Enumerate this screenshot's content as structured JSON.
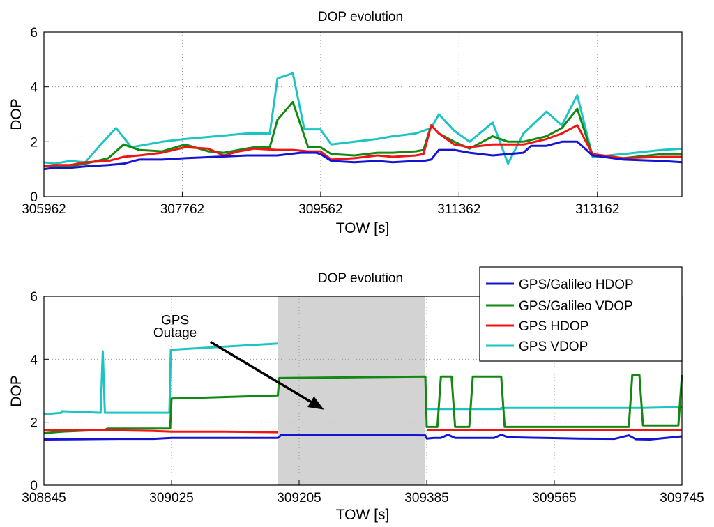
{
  "chart_data": [
    {
      "type": "line",
      "title": "DOP evolution",
      "xlabel": "TOW [s]",
      "ylabel": "DOP",
      "xlim": [
        305962,
        314262
      ],
      "ylim": [
        0,
        6
      ],
      "xticks": [
        305962,
        307762,
        309562,
        311362,
        313162
      ],
      "yticks": [
        0,
        2,
        4,
        6
      ],
      "grid": true,
      "series": [
        {
          "name": "GPS/Galileo HDOP",
          "color": "#1414d2",
          "x": [
            305962,
            306100,
            306300,
            306500,
            306800,
            307000,
            307200,
            307500,
            307800,
            308200,
            308600,
            309000,
            309300,
            309500,
            309560,
            309700,
            310000,
            310300,
            310500,
            310800,
            310900,
            311000,
            311100,
            311300,
            311500,
            311800,
            312000,
            312200,
            312300,
            312500,
            312700,
            312900,
            313100,
            313500,
            314000,
            314262
          ],
          "y": [
            1.0,
            1.05,
            1.05,
            1.1,
            1.15,
            1.2,
            1.35,
            1.35,
            1.4,
            1.45,
            1.5,
            1.5,
            1.6,
            1.6,
            1.55,
            1.3,
            1.25,
            1.3,
            1.25,
            1.3,
            1.3,
            1.35,
            1.7,
            1.7,
            1.6,
            1.5,
            1.55,
            1.6,
            1.85,
            1.85,
            2.0,
            2.0,
            1.5,
            1.35,
            1.3,
            1.25
          ]
        },
        {
          "name": "GPS/Galileo VDOP",
          "color": "#138913",
          "x": [
            305962,
            306100,
            306300,
            306500,
            306800,
            307000,
            307200,
            307500,
            307800,
            308100,
            308300,
            308500,
            308700,
            308900,
            309000,
            309200,
            309400,
            309560,
            309700,
            310000,
            310300,
            310500,
            310800,
            310900,
            311000,
            311100,
            311300,
            311500,
            311800,
            312000,
            312200,
            312500,
            312700,
            312900,
            313100,
            313500,
            314000,
            314262
          ],
          "y": [
            1.1,
            1.1,
            1.1,
            1.2,
            1.4,
            1.9,
            1.7,
            1.65,
            1.9,
            1.65,
            1.6,
            1.7,
            1.8,
            1.8,
            2.8,
            3.45,
            1.8,
            1.8,
            1.55,
            1.5,
            1.6,
            1.6,
            1.65,
            1.7,
            2.6,
            2.3,
            2.0,
            1.75,
            2.2,
            2.0,
            2.0,
            2.2,
            2.5,
            3.2,
            1.5,
            1.4,
            1.55,
            1.55
          ]
        },
        {
          "name": "GPS HDOP",
          "color": "#f01414",
          "x": [
            305962,
            306100,
            306300,
            306500,
            306800,
            307000,
            307200,
            307500,
            307800,
            308100,
            308300,
            308500,
            308700,
            309000,
            309200,
            309400,
            309560,
            309700,
            310000,
            310300,
            310500,
            310800,
            310900,
            311000,
            311100,
            311300,
            311500,
            311800,
            312000,
            312200,
            312500,
            312700,
            312900,
            313100,
            313500,
            314000,
            314262
          ],
          "y": [
            1.1,
            1.15,
            1.15,
            1.25,
            1.3,
            1.45,
            1.5,
            1.6,
            1.8,
            1.75,
            1.5,
            1.65,
            1.75,
            1.7,
            1.7,
            1.65,
            1.65,
            1.35,
            1.4,
            1.5,
            1.45,
            1.5,
            1.55,
            2.6,
            2.3,
            1.9,
            1.8,
            1.9,
            1.9,
            1.9,
            2.1,
            2.3,
            2.6,
            1.55,
            1.4,
            1.45,
            1.45
          ]
        },
        {
          "name": "GPS VDOP",
          "color": "#1ec3c3",
          "x": [
            305962,
            306100,
            306300,
            306500,
            306700,
            306900,
            307100,
            307300,
            307500,
            307800,
            308200,
            308600,
            308900,
            309000,
            309040,
            309100,
            309150,
            309200,
            309350,
            309560,
            309700,
            310000,
            310300,
            310500,
            310800,
            310900,
            311000,
            311100,
            311300,
            311500,
            311800,
            312000,
            312200,
            312500,
            312700,
            312900,
            313100,
            313500,
            314000,
            314262
          ],
          "y": [
            1.25,
            1.2,
            1.3,
            1.25,
            1.9,
            2.5,
            1.8,
            1.9,
            2.0,
            2.1,
            2.2,
            2.3,
            2.3,
            4.3,
            4.35,
            4.4,
            4.45,
            4.5,
            2.45,
            2.45,
            1.9,
            2.0,
            2.1,
            2.2,
            2.3,
            2.4,
            2.5,
            3.0,
            2.4,
            2.0,
            2.7,
            1.2,
            2.3,
            3.1,
            2.6,
            3.7,
            1.45,
            1.55,
            1.7,
            1.75
          ]
        }
      ]
    },
    {
      "type": "line",
      "title": "DOP evolution",
      "xlabel": "TOW [s]",
      "ylabel": "DOP",
      "xlim": [
        308845,
        309745
      ],
      "ylim": [
        0,
        6
      ],
      "xticks": [
        308845,
        309025,
        309205,
        309385,
        309565,
        309745
      ],
      "yticks": [
        0,
        2,
        4,
        6
      ],
      "grid": true,
      "legend": "top-right",
      "shaded_region": [
        309175,
        309383
      ],
      "annotations": [
        {
          "text": "GPS",
          "x": 309030,
          "y": 5.1
        },
        {
          "text": "Outage",
          "x": 309030,
          "y": 4.7
        }
      ],
      "arrow": {
        "from": [
          309080,
          4.55
        ],
        "to": [
          309240,
          2.4
        ]
      },
      "series": [
        {
          "name": "GPS/Galileo HDOP",
          "color": "#1414d2",
          "x": [
            308845,
            308900,
            308950,
            309000,
            309025,
            309100,
            309175,
            309180,
            309250,
            309383,
            309385,
            309395,
            309405,
            309415,
            309425,
            309440,
            309480,
            309490,
            309500,
            309550,
            309600,
            309650,
            309670,
            309680,
            309700,
            309745
          ],
          "y": [
            1.45,
            1.46,
            1.47,
            1.47,
            1.5,
            1.5,
            1.5,
            1.6,
            1.6,
            1.58,
            1.48,
            1.5,
            1.5,
            1.6,
            1.5,
            1.5,
            1.5,
            1.6,
            1.52,
            1.5,
            1.48,
            1.47,
            1.58,
            1.46,
            1.45,
            1.55
          ]
        },
        {
          "name": "GPS/Galileo VDOP",
          "color": "#138913",
          "x": [
            308845,
            308870,
            308920,
            308930,
            308935,
            309023,
            309025,
            309175,
            309177,
            309383,
            309385,
            309400,
            309405,
            309420,
            309425,
            309445,
            309450,
            309490,
            309495,
            309670,
            309675,
            309685,
            309690,
            309740,
            309745
          ],
          "y": [
            1.65,
            1.7,
            1.75,
            1.75,
            1.8,
            1.8,
            2.75,
            2.85,
            3.4,
            3.45,
            1.85,
            1.85,
            3.45,
            3.45,
            1.85,
            1.85,
            3.45,
            3.45,
            1.85,
            1.85,
            3.5,
            3.5,
            1.9,
            1.9,
            3.5
          ]
        },
        {
          "name": "GPS HDOP",
          "color": "#f01414",
          "x": [
            308845,
            308900,
            308950,
            309000,
            309025,
            309100,
            309175
          ],
          "y": [
            1.75,
            1.76,
            1.74,
            1.72,
            1.7,
            1.7,
            1.68
          ],
          "x2": [
            309385,
            309745
          ],
          "y2": [
            1.75,
            1.75
          ]
        },
        {
          "name": "GPS VDOP",
          "color": "#1ec3c3",
          "x": [
            308845,
            308870,
            308870,
            308925,
            308928,
            308931,
            309022,
            309024,
            309175
          ],
          "y": [
            2.25,
            2.3,
            2.35,
            2.3,
            4.25,
            2.3,
            2.3,
            4.3,
            4.5
          ],
          "x2": [
            309385,
            309405,
            309405,
            309450,
            309450,
            309490,
            309490,
            309670,
            309690,
            309745
          ],
          "y2": [
            2.42,
            2.42,
            2.42,
            2.42,
            2.42,
            2.42,
            2.45,
            2.45,
            2.45,
            2.48
          ]
        }
      ]
    }
  ]
}
